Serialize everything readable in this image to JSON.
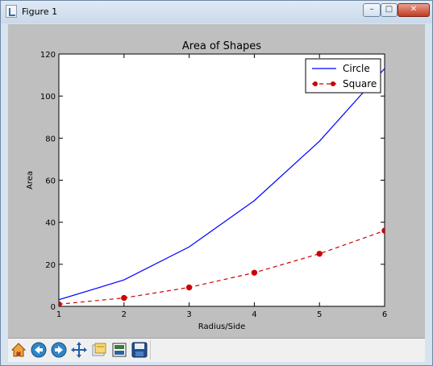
{
  "window": {
    "title": "Figure 1",
    "min_glyph": "–",
    "max_glyph": "□",
    "close_glyph": "✕"
  },
  "toolbar": {
    "buttons": [
      "home-icon",
      "back-arrow-icon",
      "forward-arrow-icon",
      "pan-icon",
      "zoom-icon",
      "subplots-icon",
      "save-icon"
    ]
  },
  "chart_data": {
    "type": "line",
    "title": "Area of Shapes",
    "xlabel": "Radius/Side",
    "ylabel": "Area",
    "xlim": [
      1,
      6
    ],
    "ylim": [
      0,
      120
    ],
    "x_ticks": [
      1,
      2,
      3,
      4,
      5,
      6
    ],
    "y_ticks": [
      0,
      20,
      40,
      60,
      80,
      100,
      120
    ],
    "x": [
      1,
      2,
      3,
      4,
      5,
      6
    ],
    "series": [
      {
        "name": "Circle",
        "values": [
          3.14,
          12.57,
          28.27,
          50.27,
          78.54,
          113.1
        ],
        "color": "#0000ff",
        "style": "solid"
      },
      {
        "name": "Square",
        "values": [
          1,
          4,
          9,
          16,
          25,
          36
        ],
        "color": "#cc0000",
        "style": "dashed",
        "marker": "circle"
      }
    ],
    "legend_position": "top-right",
    "grid": false
  }
}
